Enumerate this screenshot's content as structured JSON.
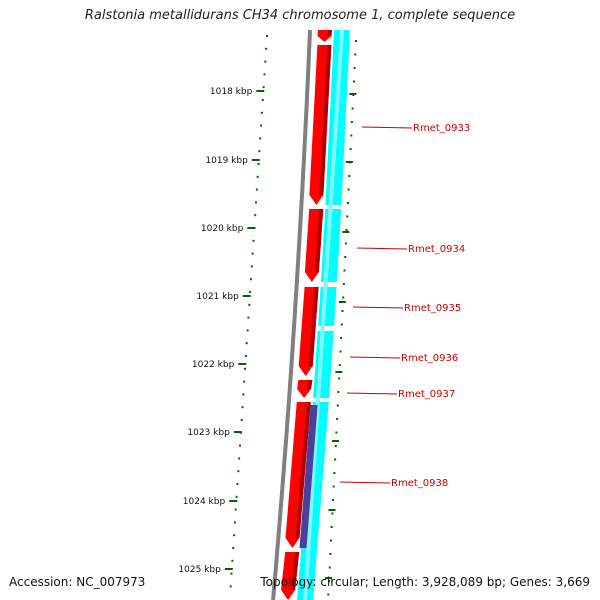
{
  "title": "Ralstonia metallidurans CH34 chromosome 1, complete sequence",
  "accession": "Accession: NC_007973",
  "summary": "Topology: circular; Length: 3,928,089 bp; Genes: 3,669",
  "ticks": [
    "1018 kbp",
    "1019 kbp",
    "1020 kbp",
    "1021 kbp",
    "1022 kbp",
    "1023 kbp",
    "1024 kbp",
    "1025 kbp"
  ],
  "genes": [
    "Rmet_0933",
    "Rmet_0934",
    "Rmet_0935",
    "Rmet_0936",
    "Rmet_0937",
    "Rmet_0938"
  ],
  "colors": {
    "backbone": "#808080",
    "cds_forward": "#ff0000",
    "cds_reverse": "#00ffff",
    "feature_other": "#4a3f9c",
    "ticks": "#006400",
    "labels": "#cc0000"
  }
}
